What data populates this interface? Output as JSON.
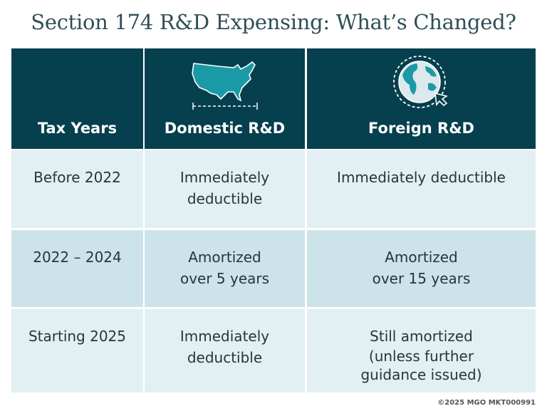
{
  "title": "Section 174 R&D Expensing: What’s Changed?",
  "colors": {
    "header_bg": "#063f4e",
    "icon_accent": "#1a9aa6",
    "row_light": "#e2eff3",
    "row_dark": "#cde3ea",
    "title": "#2f4f57"
  },
  "header": {
    "col1": "Tax Years",
    "col2": {
      "label": "Domestic R&D",
      "icon": "us-map-icon"
    },
    "col3": {
      "label": "Foreign R&D",
      "icon": "globe-icon"
    }
  },
  "rows": [
    {
      "years": "Before 2022",
      "domestic": [
        "Immediately",
        "deductible"
      ],
      "foreign": [
        "Immediately deductible"
      ]
    },
    {
      "years": "2022 – 2024",
      "domestic": [
        "Amortized",
        "over 5 years"
      ],
      "foreign": [
        "Amortized",
        "over 15 years"
      ]
    },
    {
      "years": "Starting 2025",
      "domestic": [
        "Immediately",
        "deductible"
      ],
      "foreign": [
        "Still amortized"
      ],
      "foreign_note": [
        "(unless further",
        "guidance issued)"
      ]
    }
  ],
  "footer": "©2025 MGO MKT000991"
}
